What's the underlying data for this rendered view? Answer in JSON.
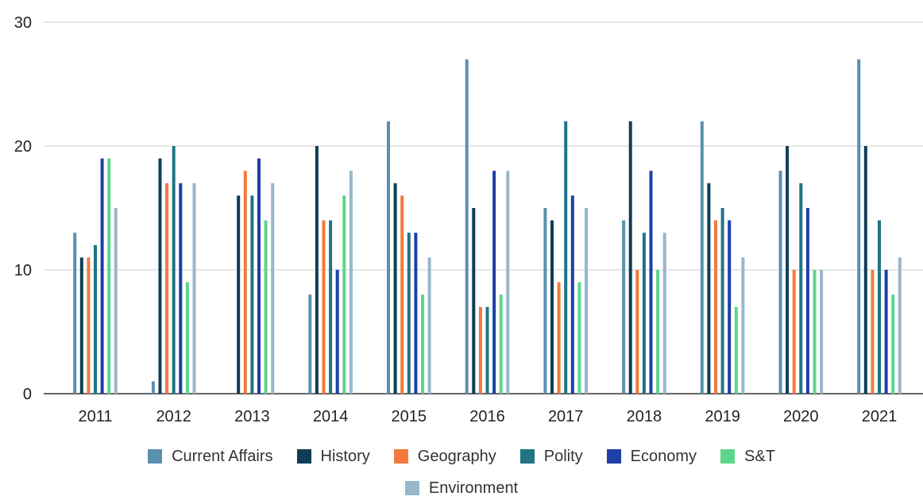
{
  "chart_data": {
    "type": "bar",
    "categories": [
      "2011",
      "2012",
      "2013",
      "2014",
      "2015",
      "2016",
      "2017",
      "2018",
      "2019",
      "2020",
      "2021"
    ],
    "ylim": [
      0,
      30
    ],
    "yticks": [
      0,
      10,
      20,
      30
    ],
    "grid": true,
    "legend_position": "bottom",
    "series": [
      {
        "name": "Current Affairs",
        "color": "#5b8fae",
        "values": [
          13,
          1,
          0,
          8,
          22,
          27,
          15,
          14,
          22,
          18,
          27
        ]
      },
      {
        "name": "History",
        "color": "#0f3d56",
        "values": [
          11,
          19,
          16,
          20,
          17,
          15,
          14,
          22,
          17,
          20,
          20
        ]
      },
      {
        "name": "Geography",
        "color": "#f37a3c",
        "values": [
          11,
          17,
          18,
          14,
          16,
          7,
          9,
          10,
          14,
          10,
          10
        ]
      },
      {
        "name": "Polity",
        "color": "#1f7485",
        "values": [
          12,
          20,
          16,
          14,
          13,
          7,
          22,
          13,
          15,
          17,
          14
        ]
      },
      {
        "name": "Economy",
        "color": "#1d3fa8",
        "values": [
          19,
          17,
          19,
          10,
          13,
          18,
          16,
          18,
          14,
          15,
          10
        ]
      },
      {
        "name": "S&T",
        "color": "#5bd68a",
        "values": [
          19,
          9,
          14,
          16,
          8,
          8,
          9,
          10,
          7,
          10,
          8
        ]
      },
      {
        "name": "Environment",
        "color": "#97b7cb",
        "values": [
          15,
          17,
          17,
          18,
          11,
          18,
          15,
          13,
          11,
          10,
          11
        ]
      }
    ]
  }
}
